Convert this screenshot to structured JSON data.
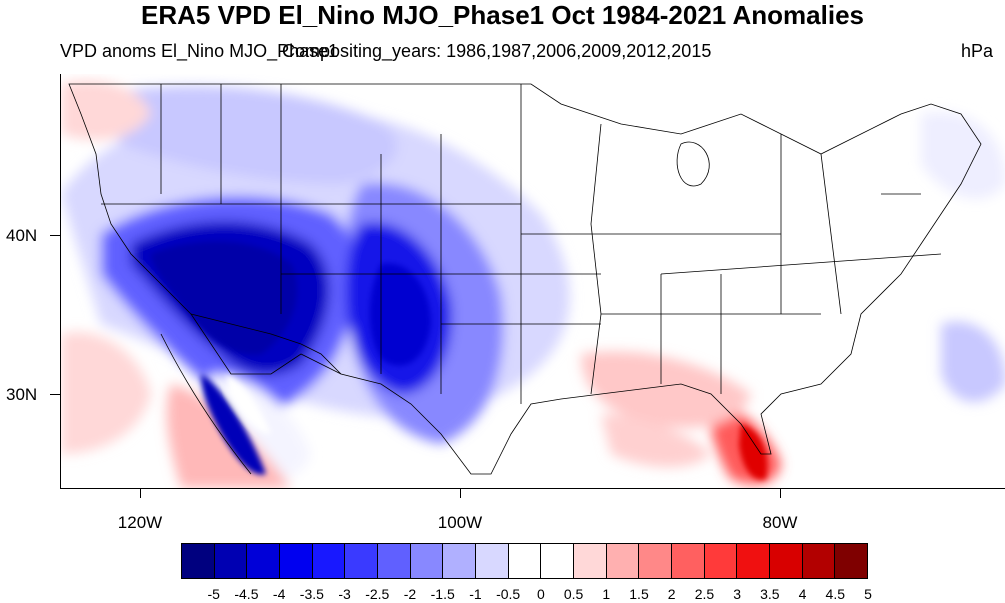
{
  "title": "ERA5 VPD El_Nino MJO_Phase1 Oct 1984-2021 Anomalies",
  "subtitle_left": "VPD anoms El_Nino MJO_Phase1",
  "subtitle_center": "Compositing_years: 1986,1987,2006,2009,2012,2015",
  "units": "hPa",
  "lat_labels": [
    "40N",
    "30N"
  ],
  "lon_labels": [
    "120W",
    "100W",
    "80W"
  ],
  "colorbar": {
    "labels": [
      "-5",
      "-4.5",
      "-4",
      "-3.5",
      "-3",
      "-2.5",
      "-2",
      "-1.5",
      "-1",
      "-0.5",
      "0",
      "0.5",
      "1",
      "1.5",
      "2",
      "2.5",
      "3",
      "3.5",
      "4",
      "4.5",
      "5"
    ],
    "colors": [
      "#00007f",
      "#0000b2",
      "#0000d8",
      "#0000f0",
      "#1818ff",
      "#3a3aff",
      "#6060ff",
      "#8888ff",
      "#b0b0ff",
      "#d8d8ff",
      "#ffffff",
      "#ffffff",
      "#ffd8d8",
      "#ffb0b0",
      "#ff8888",
      "#ff6060",
      "#ff3a3a",
      "#f01010",
      "#d80000",
      "#b20000",
      "#7f0000"
    ]
  },
  "map": {
    "region": "Contiguous United States",
    "lon_range": [
      -125,
      -66
    ],
    "lat_range": [
      24,
      50
    ],
    "anomaly_regions": [
      {
        "name": "southwest-desert",
        "level": -5,
        "color": "#0000c0"
      },
      {
        "name": "four-corners",
        "level": -4.5,
        "color": "#0000d8"
      },
      {
        "name": "new-mexico-west-texas",
        "level": -4,
        "color": "#0000e0"
      },
      {
        "name": "southern-plains",
        "level": -2,
        "color": "#6060ff"
      },
      {
        "name": "northern-rockies",
        "level": -1,
        "color": "#b0b0ff"
      },
      {
        "name": "florida-peninsula",
        "level": 3,
        "color": "#ff3a3a"
      },
      {
        "name": "gulf-coast",
        "level": 1.5,
        "color": "#ffb0b0"
      },
      {
        "name": "gulf-of-california",
        "level": 1.5,
        "color": "#ffb0b0"
      }
    ]
  }
}
